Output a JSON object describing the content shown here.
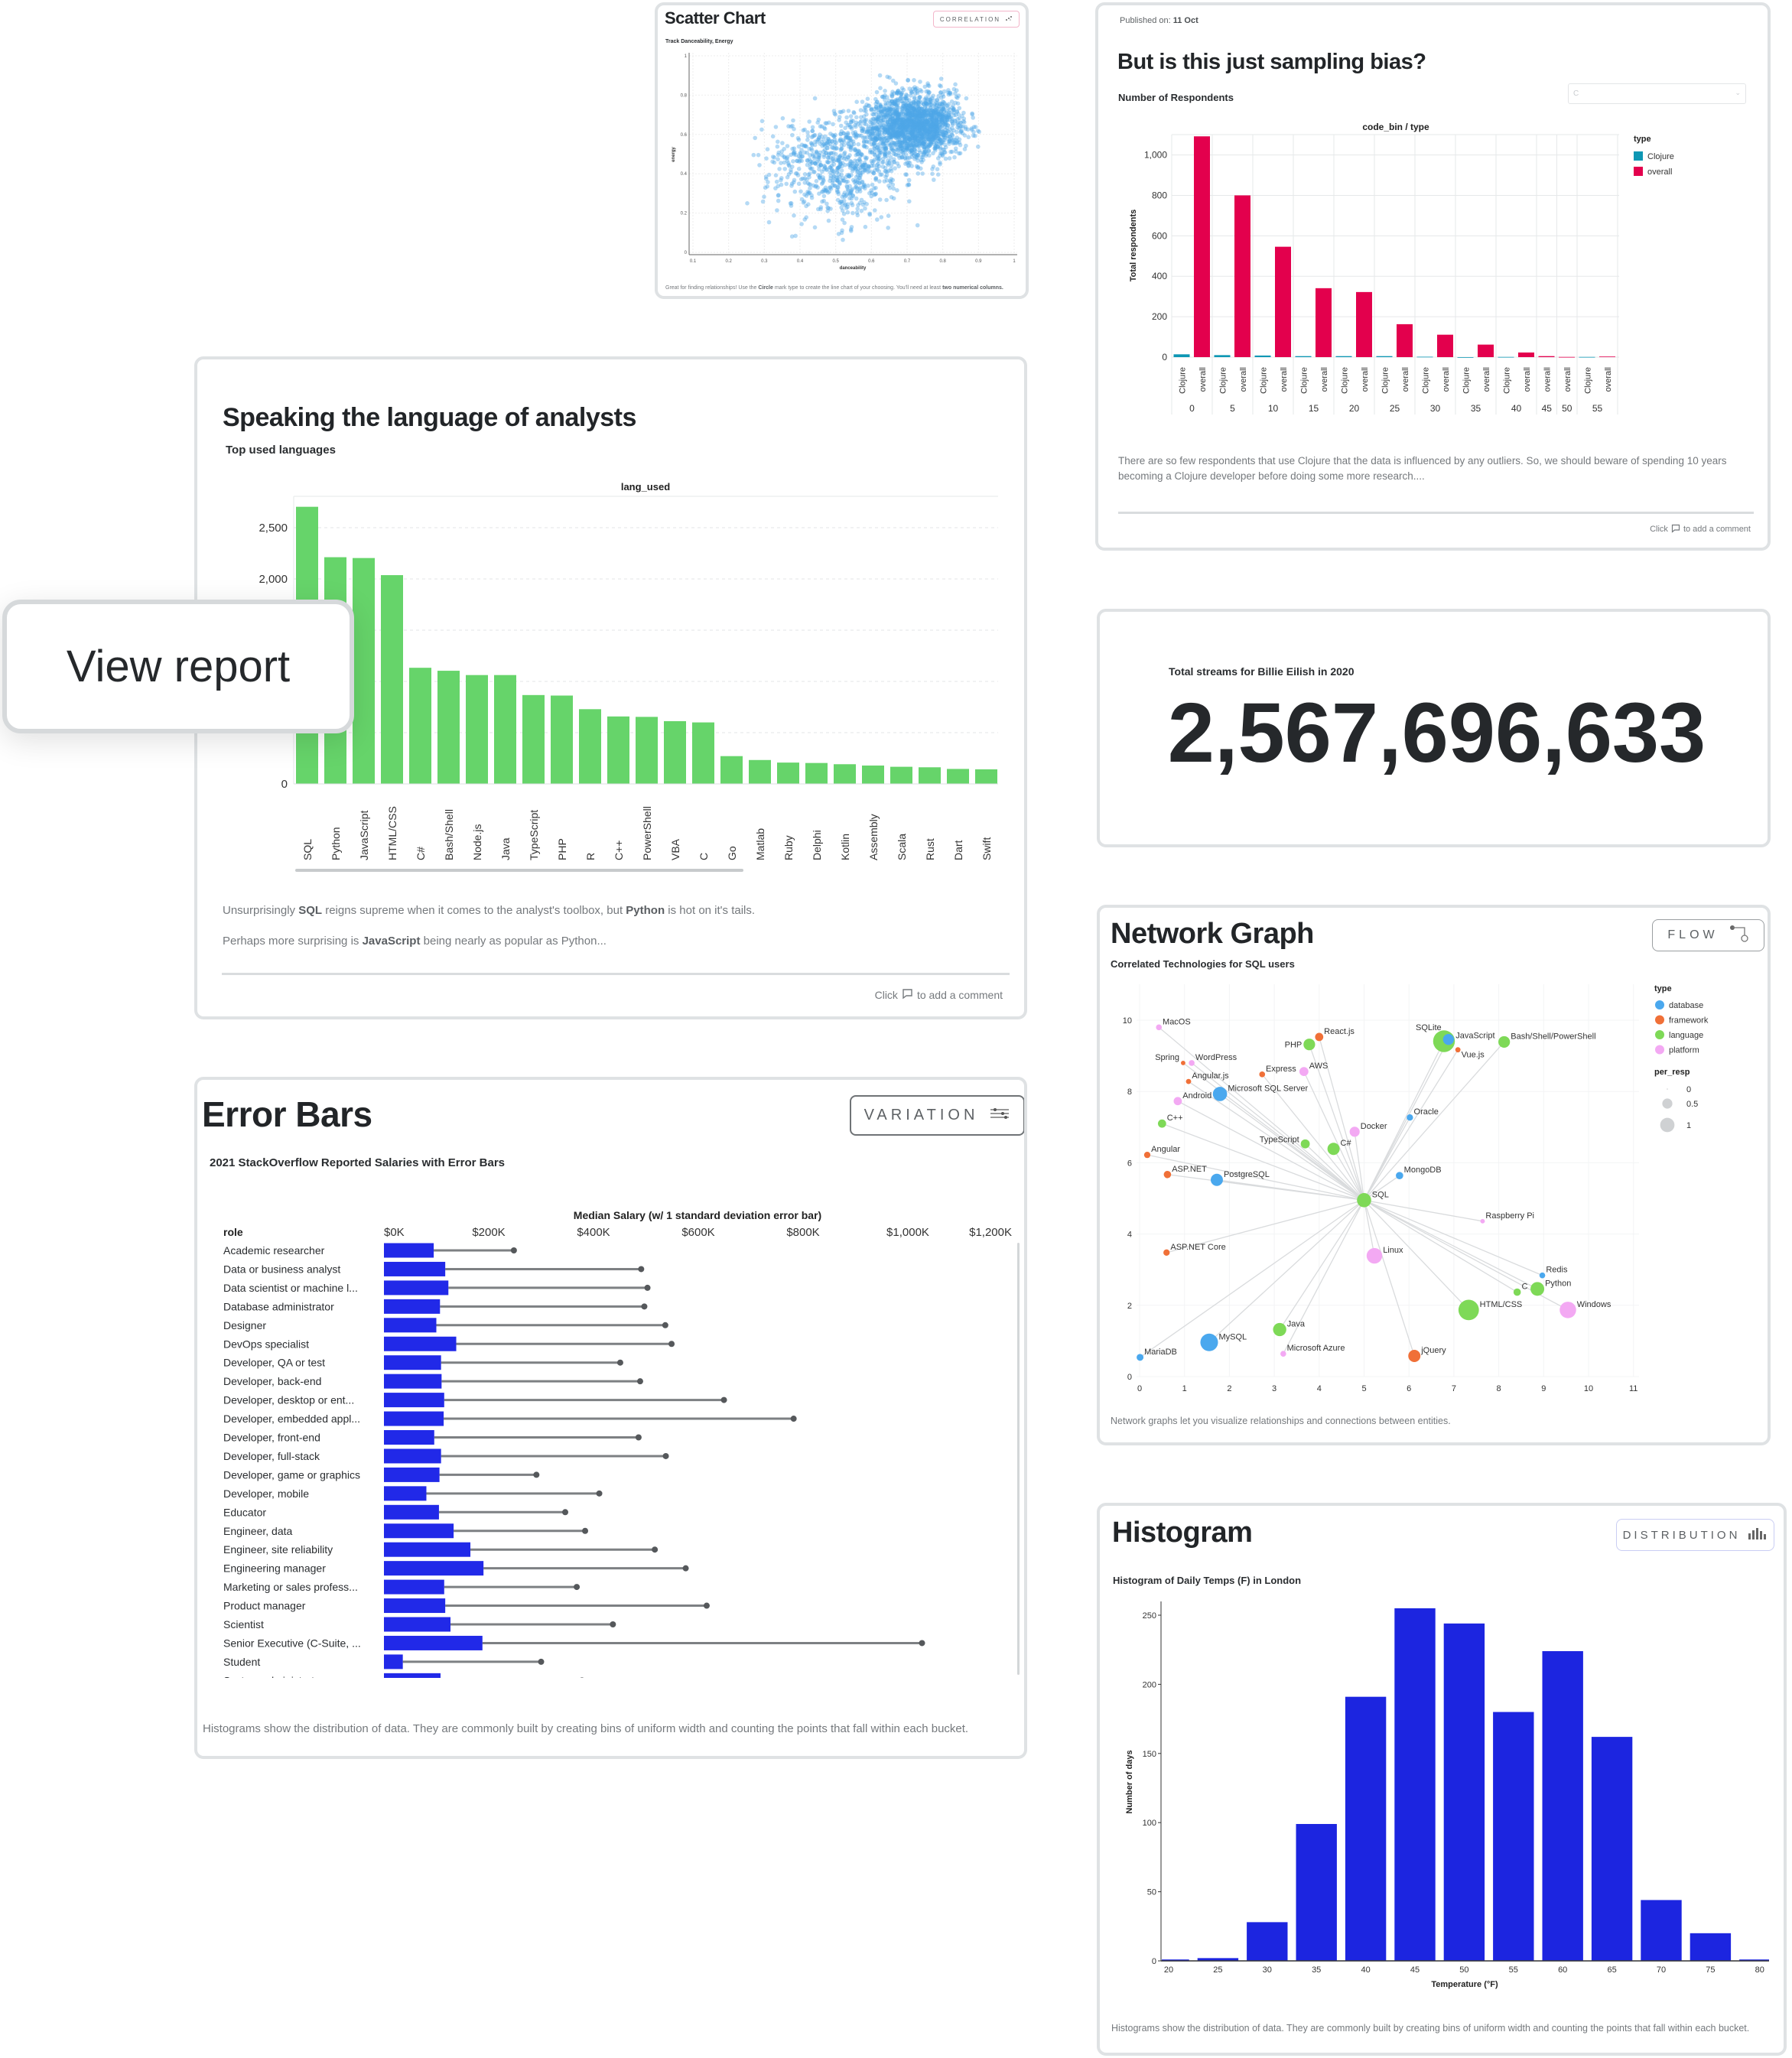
{
  "scatter_card": {
    "title": "Scatter Chart",
    "badge": "CORRELATION",
    "subtitle": "Track Danceability, Energy",
    "footer": [
      "Great for finding relationships! Use the ",
      "Circle",
      " mark type to create the line chart of your choosing. You'll need at least ",
      "two numerical columns."
    ]
  },
  "bias_card": {
    "published_label": "Published on:",
    "published_date": "11 Oct",
    "title": "But is this just sampling bias?",
    "subtitle": "Number of Respondents",
    "select_value": "C",
    "description": "There are so few respondents that use Clojure that the data is influenced by any outliers. So, we should beware of spending 10 years becoming a Clojure developer before doing some more research....",
    "comment": [
      "Click",
      "to add a comment"
    ]
  },
  "analysts_card": {
    "title": "Speaking the language of analysts",
    "subtitle": "Top used languages",
    "line1": [
      "Unsurprisingly ",
      "SQL",
      " reigns supreme when it comes to the analyst's toolbox, but ",
      "Python",
      " is hot on it's tails."
    ],
    "line2": [
      "Perhaps more surprising is ",
      "JavaScript",
      " being nearly as popular as Python..."
    ],
    "comment": [
      "Click",
      "to add a comment"
    ]
  },
  "view_report": {
    "label": "View report"
  },
  "streams_card": {
    "label": "Total streams for Billie Eilish in 2020",
    "value": "2,567,696,633"
  },
  "error_card": {
    "title": "Error Bars",
    "badge": "VARIATION",
    "subtitle": "2021 StackOverflow Reported Salaries with Error Bars",
    "footer": "Histograms show the distribution of data. They are commonly built by creating bins of uniform width and counting the points that fall within each bucket."
  },
  "network_card": {
    "title": "Network Graph",
    "badge": "FLOW",
    "subtitle": "Correlated Technologies for SQL users",
    "footer": "Network graphs let you visualize relationships and connections between entities."
  },
  "histogram_card": {
    "title": "Histogram",
    "badge": "DISTRIBUTION",
    "subtitle": "Histogram of Daily Temps (F) in London",
    "footer": "Histograms show the distribution of data. They are commonly built by creating bins of uniform width and counting the points that fall within each bucket."
  },
  "colors": {
    "scatter": "#4fa6e8",
    "clojure": "#0e97b4",
    "overall": "#e3004d",
    "lang_bar": "#66d46a",
    "error_bar": "#2129e8",
    "whisker": "#7d8083",
    "hist_bar": "#1c25e0",
    "database": "#4aa8ee",
    "framework": "#f07038",
    "language": "#7ed957",
    "platform": "#f3a9f3"
  },
  "chart_data": [
    {
      "type": "scatter",
      "title": "Track Danceability, Energy",
      "xlabel": "danceability",
      "ylabel": "energy",
      "xlim": [
        0.1,
        1
      ],
      "ylim": [
        0,
        1
      ],
      "xticks": [
        "0.1",
        "0.2",
        "0.3",
        "0.4",
        "0.5",
        "0.6",
        "0.7",
        "0.8",
        "0.9",
        "1"
      ],
      "yticks": [
        "0",
        "0.2",
        "0.4",
        "0.6",
        "0.8",
        "1"
      ],
      "point_count": 2600,
      "densest_region": [
        0.72,
        0.65
      ],
      "grid": true
    },
    {
      "type": "bar",
      "title": "code_bin / type",
      "ylabel": "Total respondents",
      "ylim": [
        0,
        1100
      ],
      "yticks": [
        0,
        200,
        400,
        600,
        800,
        1000
      ],
      "legend_title": "type",
      "legend_position": "right",
      "series_names": [
        "Clojure",
        "overall"
      ],
      "groups": [
        {
          "bin": "0",
          "Clojure": 14,
          "overall": 1092
        },
        {
          "bin": "5",
          "Clojure": 10,
          "overall": 800
        },
        {
          "bin": "10",
          "Clojure": 8,
          "overall": 546
        },
        {
          "bin": "15",
          "Clojure": 5,
          "overall": 341
        },
        {
          "bin": "20",
          "Clojure": 5,
          "overall": 322
        },
        {
          "bin": "25",
          "Clojure": 5,
          "overall": 163
        },
        {
          "bin": "30",
          "Clojure": 2,
          "overall": 111
        },
        {
          "bin": "35",
          "Clojure": 0,
          "overall": 62
        },
        {
          "bin": "40",
          "Clojure": 1,
          "overall": 23
        },
        {
          "bin": "45",
          "overall": 5
        },
        {
          "bin": "50",
          "overall": 1
        },
        {
          "bin": "55",
          "Clojure": 1,
          "overall": 3
        }
      ]
    },
    {
      "type": "bar",
      "title": "lang_used",
      "ylim": [
        0,
        2800
      ],
      "yticks": [
        0,
        500,
        1000,
        1500,
        2000,
        2500
      ],
      "ytick_labels_visible": [
        "0",
        "2,000",
        "2,500"
      ],
      "categories": [
        "SQL",
        "Python",
        "JavaScript",
        "HTML/CSS",
        "C#",
        "Bash/Shell",
        "Node.js",
        "Java",
        "TypeScript",
        "PHP",
        "R",
        "C++",
        "PowerShell",
        "VBA",
        "C",
        "Go",
        "Matlab",
        "Ruby",
        "Delphi",
        "Kotlin",
        "Assembly",
        "Scala",
        "Rust",
        "Dart",
        "Swift"
      ],
      "values": [
        2704,
        2212,
        2204,
        2037,
        1133,
        1104,
        1062,
        1062,
        867,
        862,
        729,
        658,
        654,
        612,
        600,
        271,
        233,
        208,
        204,
        192,
        179,
        167,
        162,
        146,
        142
      ]
    },
    {
      "type": "bar",
      "orientation": "horizontal",
      "title": "Median Salary (w/ 1 standard deviation error bar)",
      "ylabel": "role",
      "xlim": [
        0,
        1200
      ],
      "xticks": [
        "$0K",
        "$200K",
        "$400K",
        "$600K",
        "$800K",
        "$1,000K",
        "$1,200K"
      ],
      "categories": [
        "Academic researcher",
        "Data or business analyst",
        "Data scientist or machine l...",
        "Database administrator",
        "Designer",
        "DevOps specialist",
        "Developer, QA or test",
        "Developer, back-end",
        "Developer, desktop or ent...",
        "Developer, embedded appl...",
        "Developer, front-end",
        "Developer, full-stack",
        "Developer, game or graphics",
        "Developer, mobile",
        "Educator",
        "Engineer, data",
        "Engineer, site reliability",
        "Engineering manager",
        "Marketing or sales profess...",
        "Product manager",
        "Scientist",
        "Senior Executive (C-Suite, ...",
        "Student",
        "System administrator"
      ],
      "median_k": [
        95,
        117,
        123,
        107,
        100,
        138,
        109,
        110,
        115,
        114,
        96,
        109,
        106,
        81,
        105,
        133,
        165,
        190,
        115,
        117,
        127,
        188,
        36,
        108
      ],
      "upper_k": [
        248,
        491,
        503,
        497,
        537,
        549,
        451,
        489,
        649,
        782,
        486,
        538,
        291,
        411,
        346,
        384,
        517,
        576,
        368,
        616,
        437,
        1027,
        300,
        378
      ]
    },
    {
      "type": "scatter",
      "subtype": "network",
      "center_node": "SQL",
      "xlim": [
        0,
        11
      ],
      "ylim": [
        0,
        10.5
      ],
      "xticks": [
        0,
        1,
        2,
        3,
        4,
        5,
        6,
        7,
        8,
        9,
        10,
        11
      ],
      "yticks": [
        0,
        2,
        4,
        6,
        8,
        10
      ],
      "legend_type_title": "type",
      "types": [
        "database",
        "framework",
        "language",
        "platform"
      ],
      "legend_size_title": "per_resp",
      "size_legend": [
        0,
        0.5,
        1
      ],
      "nodes": [
        {
          "name": "MacOS",
          "type": "platform",
          "x": 0.43,
          "y": 9.8,
          "per_resp": 0.05
        },
        {
          "name": "Spring",
          "type": "framework",
          "x": 0.97,
          "y": 8.8,
          "per_resp": 0.03
        },
        {
          "name": "WordPress",
          "type": "platform",
          "x": 1.16,
          "y": 8.8,
          "per_resp": 0.05
        },
        {
          "name": "React.js",
          "type": "framework",
          "x": 4.0,
          "y": 9.53,
          "per_resp": 0.1
        },
        {
          "name": "PHP",
          "type": "language",
          "x": 3.78,
          "y": 9.32,
          "per_resp": 0.2
        },
        {
          "name": "JavaScript",
          "type": "language",
          "x": 6.78,
          "y": 9.41,
          "per_resp": 0.7
        },
        {
          "name": "SQLite",
          "type": "database",
          "x": 6.88,
          "y": 9.46,
          "per_resp": 0.18
        },
        {
          "name": "Vue.js",
          "type": "framework",
          "x": 7.09,
          "y": 9.17,
          "per_resp": 0.04
        },
        {
          "name": "Bash/Shell/PowerShell",
          "type": "language",
          "x": 8.12,
          "y": 9.39,
          "per_resp": 0.2
        },
        {
          "name": "Express",
          "type": "framework",
          "x": 2.73,
          "y": 8.48,
          "per_resp": 0.05
        },
        {
          "name": "AWS",
          "type": "platform",
          "x": 3.66,
          "y": 8.56,
          "per_resp": 0.12
        },
        {
          "name": "Angular.js",
          "type": "framework",
          "x": 1.09,
          "y": 8.28,
          "per_resp": 0.04
        },
        {
          "name": "Microsoft SQL Server",
          "type": "database",
          "x": 1.79,
          "y": 7.93,
          "per_resp": 0.3
        },
        {
          "name": "Android",
          "type": "platform",
          "x": 0.85,
          "y": 7.73,
          "per_resp": 0.1
        },
        {
          "name": "C++",
          "type": "language",
          "x": 0.5,
          "y": 7.1,
          "per_resp": 0.1
        },
        {
          "name": "Oracle",
          "type": "database",
          "x": 6.02,
          "y": 7.27,
          "per_resp": 0.06
        },
        {
          "name": "Docker",
          "type": "platform",
          "x": 4.79,
          "y": 6.87,
          "per_resp": 0.15
        },
        {
          "name": "TypeScript",
          "type": "language",
          "x": 3.69,
          "y": 6.53,
          "per_resp": 0.12
        },
        {
          "name": "C#",
          "type": "language",
          "x": 4.32,
          "y": 6.39,
          "per_resp": 0.22
        },
        {
          "name": "Angular",
          "type": "framework",
          "x": 0.17,
          "y": 6.22,
          "per_resp": 0.06
        },
        {
          "name": "ASP.NET",
          "type": "framework",
          "x": 0.62,
          "y": 5.67,
          "per_resp": 0.08
        },
        {
          "name": "PostgreSQL",
          "type": "database",
          "x": 1.72,
          "y": 5.52,
          "per_resp": 0.22
        },
        {
          "name": "MongoDB",
          "type": "database",
          "x": 5.79,
          "y": 5.64,
          "per_resp": 0.08
        },
        {
          "name": "SQL",
          "type": "language",
          "x": 5.0,
          "y": 4.95,
          "per_resp": 0.3
        },
        {
          "name": "Raspberry Pi",
          "type": "platform",
          "x": 7.64,
          "y": 4.36,
          "per_resp": 0.03
        },
        {
          "name": "ASP.NET Core",
          "type": "framework",
          "x": 0.6,
          "y": 3.48,
          "per_resp": 0.06
        },
        {
          "name": "Linux",
          "type": "platform",
          "x": 5.23,
          "y": 3.39,
          "per_resp": 0.36
        },
        {
          "name": "Redis",
          "type": "database",
          "x": 8.97,
          "y": 2.84,
          "per_resp": 0.05
        },
        {
          "name": "C",
          "type": "language",
          "x": 8.41,
          "y": 2.37,
          "per_resp": 0.08
        },
        {
          "name": "Python",
          "type": "language",
          "x": 8.86,
          "y": 2.46,
          "per_resp": 0.28
        },
        {
          "name": "HTML/CSS",
          "type": "language",
          "x": 7.33,
          "y": 1.87,
          "per_resp": 0.62
        },
        {
          "name": "Windows",
          "type": "platform",
          "x": 9.54,
          "y": 1.87,
          "per_resp": 0.4
        },
        {
          "name": "Java",
          "type": "language",
          "x": 3.12,
          "y": 1.32,
          "per_resp": 0.26
        },
        {
          "name": "MySQL",
          "type": "database",
          "x": 1.55,
          "y": 0.96,
          "per_resp": 0.46
        },
        {
          "name": "Microsoft Azure",
          "type": "platform",
          "x": 3.2,
          "y": 0.64,
          "per_resp": 0.05
        },
        {
          "name": "MariaDB",
          "type": "database",
          "x": 0.01,
          "y": 0.54,
          "per_resp": 0.07
        },
        {
          "name": "jQuery",
          "type": "framework",
          "x": 6.12,
          "y": 0.58,
          "per_resp": 0.22
        }
      ]
    },
    {
      "type": "bar",
      "subtype": "histogram",
      "title": "Histogram of Daily Temps (F) in London",
      "xlabel": "Temperature (°F)",
      "ylabel": "Number of days",
      "ylim": [
        0,
        270
      ],
      "yticks": [
        0,
        50,
        100,
        150,
        200,
        250
      ],
      "categories": [
        20,
        25,
        30,
        35,
        40,
        45,
        50,
        55,
        60,
        65,
        70,
        75,
        80
      ],
      "values": [
        1,
        2,
        28,
        99,
        191,
        255,
        244,
        180,
        224,
        162,
        44,
        20,
        1
      ]
    }
  ]
}
